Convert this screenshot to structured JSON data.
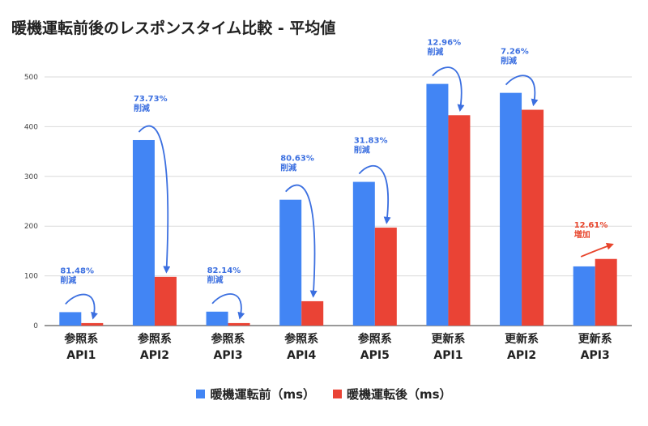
{
  "chart_data": {
    "type": "bar",
    "title": "暖機運転前後のレスポンスタイム比較 - 平均値",
    "categories": [
      {
        "line1": "参照系",
        "line2": "API1"
      },
      {
        "line1": "参照系",
        "line2": "API2"
      },
      {
        "line1": "参照系",
        "line2": "API3"
      },
      {
        "line1": "参照系",
        "line2": "API4"
      },
      {
        "line1": "参照系",
        "line2": "API5"
      },
      {
        "line1": "更新系",
        "line2": "API1"
      },
      {
        "line1": "更新系",
        "line2": "API2"
      },
      {
        "line1": "更新系",
        "line2": "API3"
      }
    ],
    "series": [
      {
        "name": "暖機運転前（ms）",
        "color": "#4285f4",
        "values": [
          27,
          373,
          28,
          253,
          289,
          486,
          468,
          119
        ]
      },
      {
        "name": "暖機運転後（ms）",
        "color": "#ea4335",
        "values": [
          5,
          98,
          5,
          49,
          197,
          423,
          434,
          134
        ]
      }
    ],
    "ylim": [
      0,
      500
    ],
    "yticks": [
      0,
      100,
      200,
      300,
      400,
      500
    ],
    "grid": true,
    "legend_position": "bottom",
    "annotations": [
      {
        "percent": "81.48%",
        "label": "削減",
        "color": "#3b6fe0"
      },
      {
        "percent": "73.73%",
        "label": "削減",
        "color": "#3b6fe0"
      },
      {
        "percent": "82.14%",
        "label": "削減",
        "color": "#3b6fe0"
      },
      {
        "percent": "80.63%",
        "label": "削減",
        "color": "#3b6fe0"
      },
      {
        "percent": "31.83%",
        "label": "削減",
        "color": "#3b6fe0"
      },
      {
        "percent": "12.96%",
        "label": "削減",
        "color": "#3b6fe0"
      },
      {
        "percent": "7.26%",
        "label": "削減",
        "color": "#3b6fe0"
      },
      {
        "percent": "12.61%",
        "label": "増加",
        "color": "#e8452c"
      }
    ]
  }
}
